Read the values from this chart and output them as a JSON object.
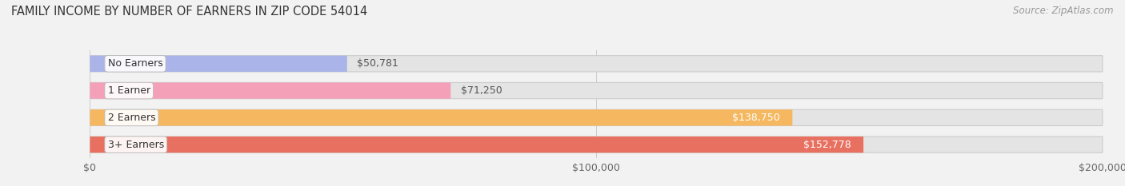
{
  "title": "FAMILY INCOME BY NUMBER OF EARNERS IN ZIP CODE 54014",
  "source": "Source: ZipAtlas.com",
  "categories": [
    "No Earners",
    "1 Earner",
    "2 Earners",
    "3+ Earners"
  ],
  "values": [
    50781,
    71250,
    138750,
    152778
  ],
  "bar_colors": [
    "#aab4e8",
    "#f4a0b8",
    "#f5b860",
    "#e87060"
  ],
  "label_colors_inside": [
    false,
    false,
    true,
    true
  ],
  "value_labels": [
    "$50,781",
    "$71,250",
    "$138,750",
    "$152,778"
  ],
  "xlim": [
    0,
    200000
  ],
  "xtick_values": [
    0,
    100000,
    200000
  ],
  "xtick_labels": [
    "$0",
    "$100,000",
    "$200,000"
  ],
  "bg_color": "#f2f2f2",
  "bar_bg_color": "#e4e4e4",
  "title_fontsize": 10.5,
  "source_fontsize": 8.5,
  "label_fontsize": 9,
  "value_fontsize": 9,
  "tick_fontsize": 9
}
